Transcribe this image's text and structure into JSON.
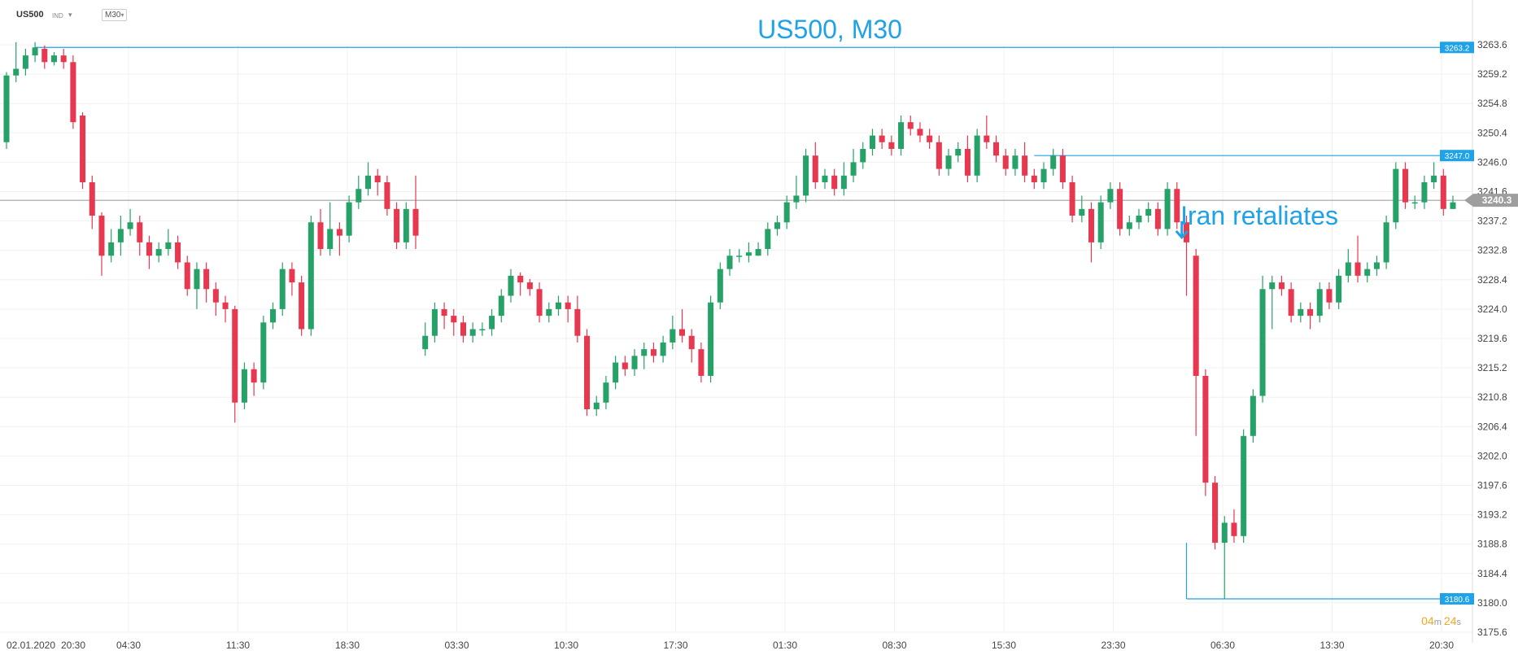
{
  "header": {
    "symbol": "US500",
    "type": "IND",
    "timeframe": "M30"
  },
  "countdown": {
    "minutes": "04",
    "seconds": "24"
  },
  "chart_data": {
    "type": "candlestick",
    "title": "US500, M30",
    "annotation": "Iran retaliates",
    "y_ticks": [
      "3263.6",
      "3259.2",
      "3254.8",
      "3250.4",
      "3246.0",
      "3241.6",
      "3237.2",
      "3232.8",
      "3228.4",
      "3224.0",
      "3219.6",
      "3215.2",
      "3210.8",
      "3206.4",
      "3202.0",
      "3197.6",
      "3193.2",
      "3188.8",
      "3184.4",
      "3180.0",
      "3175.6"
    ],
    "x_labels": [
      "02.01.2020",
      "20:30",
      "04:30",
      "11:30",
      "18:30",
      "03:30",
      "10:30",
      "17:30",
      "01:30",
      "08:30",
      "15:30",
      "23:30",
      "06:30",
      "13:30",
      "20:30"
    ],
    "ylim": [
      3175.6,
      3263.6
    ],
    "current_price": 3240.3,
    "price_lines": [
      3263.2,
      3247.0,
      3180.6
    ],
    "colors": {
      "up": "#26a269",
      "down": "#e8384f",
      "accent": "#1fa2e8"
    },
    "candles": [
      [
        3249,
        3259,
        3259.5,
        3248
      ],
      [
        3259,
        3260,
        3264,
        3258
      ],
      [
        3260,
        3262,
        3263,
        3259
      ],
      [
        3262,
        3263.2,
        3264,
        3261
      ],
      [
        3263,
        3261,
        3263.5,
        3260
      ],
      [
        3261,
        3262,
        3262.5,
        3260.5
      ],
      [
        3262,
        3261,
        3263,
        3260
      ],
      [
        3261,
        3252,
        3262,
        3251
      ],
      [
        3253,
        3243,
        3253.5,
        3242
      ],
      [
        3243,
        3238,
        3244,
        3236
      ],
      [
        3238,
        3232,
        3238.5,
        3229
      ],
      [
        3232,
        3234,
        3236,
        3231
      ],
      [
        3234,
        3236,
        3238,
        3232
      ],
      [
        3236,
        3237,
        3239,
        3235
      ],
      [
        3237,
        3234,
        3238,
        3232
      ],
      [
        3234,
        3232,
        3235,
        3230
      ],
      [
        3232,
        3233,
        3234,
        3231
      ],
      [
        3233,
        3234,
        3236,
        3232
      ],
      [
        3234,
        3231,
        3235,
        3230
      ],
      [
        3231,
        3227,
        3232,
        3226
      ],
      [
        3227,
        3230,
        3231,
        3224
      ],
      [
        3230,
        3227,
        3231,
        3225
      ],
      [
        3227,
        3225,
        3228,
        3223
      ],
      [
        3225,
        3224,
        3226,
        3222
      ],
      [
        3224,
        3210,
        3224.5,
        3207
      ],
      [
        3210,
        3215,
        3216,
        3209
      ],
      [
        3215,
        3213,
        3216,
        3211
      ],
      [
        3213,
        3222,
        3223,
        3212
      ],
      [
        3222,
        3224,
        3225,
        3221
      ],
      [
        3224,
        3230,
        3231,
        3223
      ],
      [
        3230,
        3228,
        3231,
        3226
      ],
      [
        3228,
        3221,
        3229,
        3220
      ],
      [
        3221,
        3237,
        3238,
        3220
      ],
      [
        3237,
        3233,
        3239,
        3232
      ],
      [
        3233,
        3236,
        3240,
        3232
      ],
      [
        3236,
        3235,
        3237,
        3232
      ],
      [
        3235,
        3240,
        3241,
        3234
      ],
      [
        3240,
        3242,
        3244,
        3239
      ],
      [
        3242,
        3244,
        3246,
        3241
      ],
      [
        3244,
        3243,
        3245,
        3241
      ],
      [
        3243,
        3239,
        3244,
        3238
      ],
      [
        3239,
        3234,
        3240,
        3233
      ],
      [
        3234,
        3239,
        3240,
        3233
      ],
      [
        3239,
        3235,
        3244,
        3233
      ],
      [
        3218,
        3220,
        3222,
        3217
      ],
      [
        3220,
        3224,
        3225,
        3219
      ],
      [
        3224,
        3223,
        3225,
        3221
      ],
      [
        3223,
        3222,
        3224,
        3220
      ],
      [
        3222,
        3220,
        3223,
        3219
      ],
      [
        3220,
        3221,
        3222,
        3219
      ],
      [
        3221,
        3221,
        3222,
        3220
      ],
      [
        3221,
        3223,
        3224,
        3220
      ],
      [
        3223,
        3226,
        3227,
        3222
      ],
      [
        3226,
        3229,
        3230,
        3225
      ],
      [
        3229,
        3228,
        3229.5,
        3226
      ],
      [
        3228,
        3227,
        3228.5,
        3226
      ],
      [
        3227,
        3223,
        3228,
        3222
      ],
      [
        3223,
        3224,
        3225,
        3222
      ],
      [
        3224,
        3225,
        3226,
        3223
      ],
      [
        3225,
        3224,
        3226,
        3222
      ],
      [
        3224,
        3220,
        3226,
        3219
      ],
      [
        3220,
        3209,
        3221,
        3208
      ],
      [
        3209,
        3210,
        3211,
        3208
      ],
      [
        3210,
        3213,
        3214,
        3209
      ],
      [
        3213,
        3216,
        3217,
        3212
      ],
      [
        3216,
        3215,
        3217,
        3214
      ],
      [
        3215,
        3217,
        3218,
        3214
      ],
      [
        3217,
        3218,
        3219,
        3215
      ],
      [
        3218,
        3217,
        3219,
        3216
      ],
      [
        3217,
        3219,
        3220,
        3216
      ],
      [
        3219,
        3221,
        3223,
        3218
      ],
      [
        3221,
        3220,
        3224,
        3219
      ],
      [
        3220,
        3218,
        3221,
        3216
      ],
      [
        3218,
        3214,
        3219,
        3213
      ],
      [
        3214,
        3225,
        3226,
        3213
      ],
      [
        3225,
        3230,
        3231,
        3224
      ],
      [
        3230,
        3232,
        3233,
        3229
      ],
      [
        3232,
        3232,
        3233,
        3231
      ],
      [
        3232,
        3232.5,
        3234,
        3231
      ],
      [
        3232,
        3233,
        3234,
        3232
      ],
      [
        3233,
        3236,
        3237,
        3232
      ],
      [
        3236,
        3237,
        3238,
        3235
      ],
      [
        3237,
        3240,
        3241,
        3236
      ],
      [
        3240,
        3241,
        3244,
        3239
      ],
      [
        3241,
        3247,
        3248,
        3240
      ],
      [
        3247,
        3243,
        3249,
        3242
      ],
      [
        3243,
        3244,
        3245,
        3242
      ],
      [
        3244,
        3242,
        3245,
        3241
      ],
      [
        3242,
        3244,
        3246,
        3241
      ],
      [
        3244,
        3246,
        3248,
        3243
      ],
      [
        3246,
        3248,
        3249,
        3245
      ],
      [
        3248,
        3250,
        3251,
        3247
      ],
      [
        3250,
        3249,
        3251,
        3248
      ],
      [
        3249,
        3248,
        3250,
        3247
      ],
      [
        3248,
        3252,
        3253,
        3247
      ],
      [
        3252,
        3251,
        3253,
        3250
      ],
      [
        3251,
        3250,
        3252,
        3249
      ],
      [
        3250,
        3249,
        3251,
        3248
      ],
      [
        3249,
        3245,
        3250,
        3244
      ],
      [
        3245,
        3247,
        3248,
        3244
      ],
      [
        3247,
        3248,
        3249,
        3246
      ],
      [
        3248,
        3244,
        3250,
        3243
      ],
      [
        3244,
        3250,
        3251,
        3243
      ],
      [
        3250,
        3249,
        3253,
        3248
      ],
      [
        3249,
        3247,
        3250,
        3246
      ],
      [
        3247,
        3245,
        3248,
        3244
      ],
      [
        3245,
        3247,
        3248,
        3244
      ],
      [
        3247,
        3244,
        3249,
        3243
      ],
      [
        3244,
        3243,
        3245,
        3242
      ],
      [
        3243,
        3245,
        3246,
        3242
      ],
      [
        3245,
        3247,
        3248,
        3244
      ],
      [
        3247,
        3243,
        3248,
        3242
      ],
      [
        3243,
        3238,
        3244,
        3237
      ],
      [
        3238,
        3239,
        3241,
        3237
      ],
      [
        3239,
        3234,
        3240,
        3231
      ],
      [
        3234,
        3240,
        3241,
        3233
      ],
      [
        3240,
        3242,
        3243,
        3239
      ],
      [
        3242,
        3236,
        3243,
        3235
      ],
      [
        3236,
        3237,
        3238,
        3235
      ],
      [
        3237,
        3238,
        3239,
        3236
      ],
      [
        3238,
        3239,
        3240,
        3237
      ],
      [
        3239,
        3236,
        3240,
        3235
      ],
      [
        3236,
        3242,
        3243,
        3235
      ],
      [
        3242,
        3237,
        3243,
        3236
      ],
      [
        3237,
        3234,
        3238,
        3226
      ],
      [
        3232,
        3214,
        3233,
        3205
      ],
      [
        3214,
        3198,
        3215,
        3196
      ],
      [
        3198,
        3189,
        3199,
        3188
      ],
      [
        3189,
        3192,
        3193,
        3180.6
      ],
      [
        3192,
        3190,
        3194,
        3189
      ],
      [
        3190,
        3205,
        3206,
        3189
      ],
      [
        3205,
        3211,
        3212,
        3204
      ],
      [
        3211,
        3227,
        3229,
        3210
      ],
      [
        3227,
        3228,
        3229,
        3221
      ],
      [
        3228,
        3227,
        3229,
        3226
      ],
      [
        3227,
        3223,
        3228,
        3222
      ],
      [
        3223,
        3224,
        3225,
        3222
      ],
      [
        3224,
        3223,
        3225,
        3221
      ],
      [
        3223,
        3227,
        3228,
        3222
      ],
      [
        3227,
        3225,
        3228,
        3224
      ],
      [
        3225,
        3229,
        3230,
        3224
      ],
      [
        3229,
        3231,
        3233,
        3228
      ],
      [
        3231,
        3229,
        3235,
        3228
      ],
      [
        3229,
        3230,
        3231,
        3228
      ],
      [
        3230,
        3231,
        3232,
        3229
      ],
      [
        3231,
        3237,
        3238,
        3230
      ],
      [
        3237,
        3245,
        3246,
        3236
      ],
      [
        3245,
        3240,
        3246,
        3239
      ],
      [
        3240,
        3240,
        3241,
        3239
      ],
      [
        3240,
        3243,
        3244,
        3239
      ],
      [
        3243,
        3244,
        3246,
        3242
      ],
      [
        3244,
        3239,
        3245,
        3238
      ],
      [
        3239,
        3240,
        3241,
        3239
      ]
    ]
  }
}
